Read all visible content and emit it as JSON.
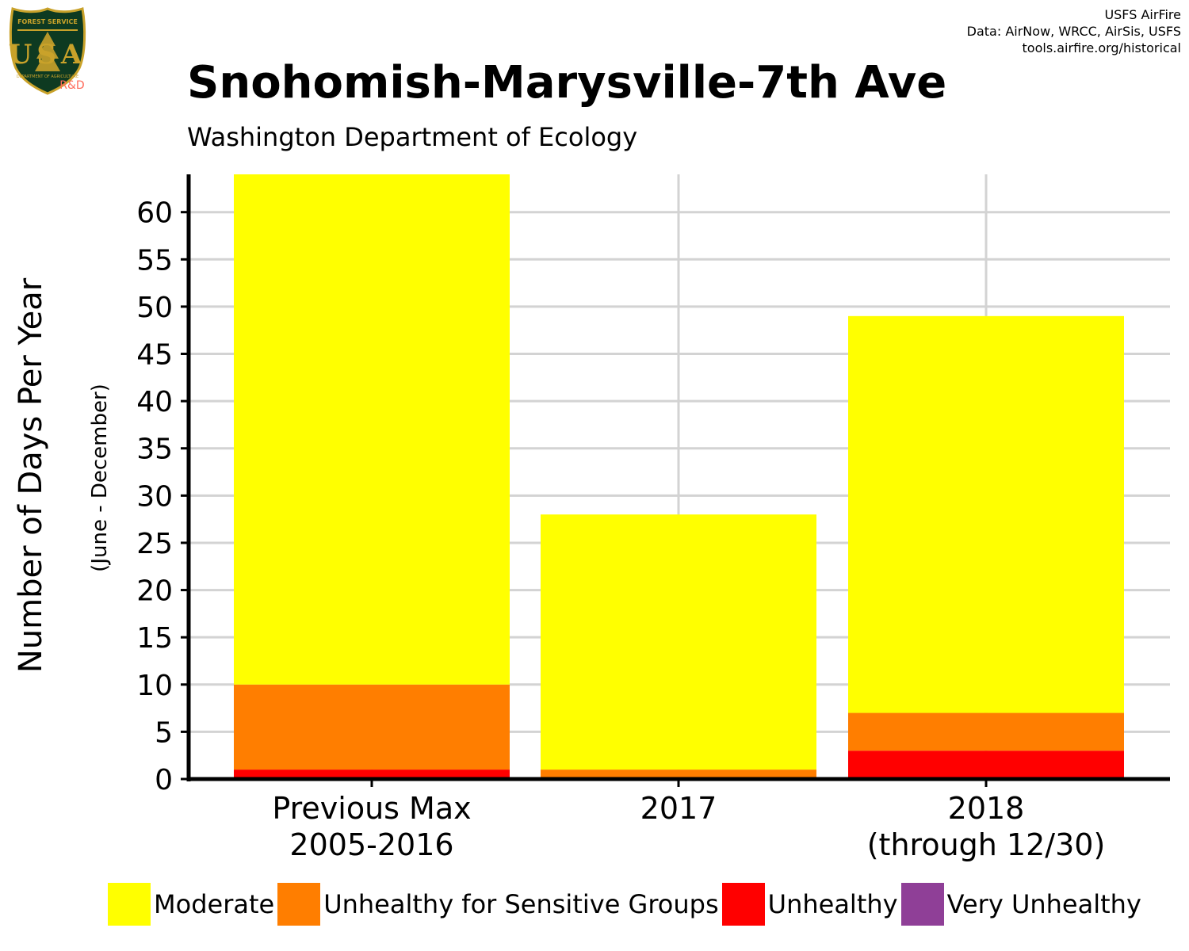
{
  "logo": {
    "top_text": "FOREST SERVICE",
    "letters": "USA",
    "bottom_text": "DEPARTMENT OF AGRICULTURE",
    "rd_label": "R&D"
  },
  "credits": [
    "USFS AirFire",
    "Data: AirNow, WRCC, AirSis, USFS",
    "tools.airfire.org/historical"
  ],
  "chart_data": {
    "type": "bar",
    "stacked": true,
    "title": "Snohomish-Marysville-7th Ave",
    "subtitle": "Washington Department of Ecology",
    "ylabel": "Number of Days Per Year",
    "ylabel_sub": "(June - December)",
    "xlabel": "",
    "categories": [
      [
        "Previous Max",
        "2005-2016"
      ],
      [
        "2017"
      ],
      [
        "2018",
        "(through 12/30)"
      ]
    ],
    "series": [
      {
        "name": "Unhealthy",
        "color": "#ff0000",
        "values": [
          1,
          0,
          3
        ]
      },
      {
        "name": "Unhealthy for Sensitive Groups",
        "color": "#ff7e00",
        "values": [
          9,
          1,
          4
        ]
      },
      {
        "name": "Moderate",
        "color": "#ffff00",
        "values": [
          54,
          27,
          42
        ]
      }
    ],
    "legend": [
      {
        "name": "Moderate",
        "color": "#ffff00"
      },
      {
        "name": "Unhealthy for Sensitive Groups",
        "color": "#ff7e00"
      },
      {
        "name": "Unhealthy",
        "color": "#ff0000"
      },
      {
        "name": "Very Unhealthy",
        "color": "#8f3f97"
      }
    ],
    "legend_position": "bottom",
    "ylim": [
      0,
      64
    ],
    "yticks": [
      0,
      5,
      10,
      15,
      20,
      25,
      30,
      35,
      40,
      45,
      50,
      55,
      60
    ],
    "grid": true
  }
}
